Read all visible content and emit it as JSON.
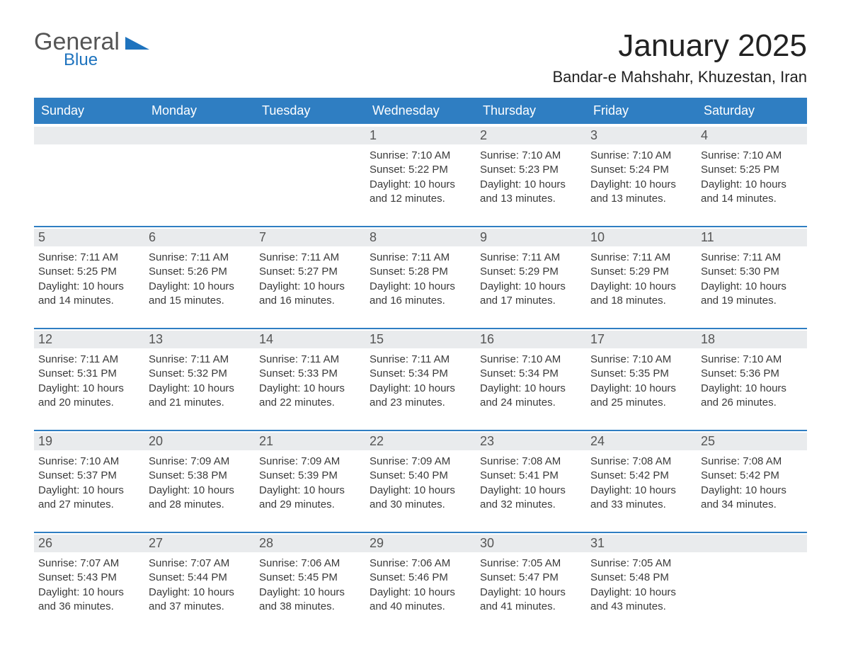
{
  "logo": {
    "word1": "General",
    "word2": "Blue"
  },
  "colors": {
    "brand_blue": "#2f7ec2",
    "link_blue": "#1e73be",
    "band_grey": "#e9ebed",
    "text": "#333333",
    "bg": "#ffffff"
  },
  "title": "January 2025",
  "location": "Bandar-e Mahshahr, Khuzestan, Iran",
  "day_names": [
    "Sunday",
    "Monday",
    "Tuesday",
    "Wednesday",
    "Thursday",
    "Friday",
    "Saturday"
  ],
  "weeks": [
    [
      {
        "day": "",
        "sunrise": "",
        "sunset": "",
        "daylight": ""
      },
      {
        "day": "",
        "sunrise": "",
        "sunset": "",
        "daylight": ""
      },
      {
        "day": "",
        "sunrise": "",
        "sunset": "",
        "daylight": ""
      },
      {
        "day": "1",
        "sunrise": "Sunrise: 7:10 AM",
        "sunset": "Sunset: 5:22 PM",
        "daylight": "Daylight: 10 hours and 12 minutes."
      },
      {
        "day": "2",
        "sunrise": "Sunrise: 7:10 AM",
        "sunset": "Sunset: 5:23 PM",
        "daylight": "Daylight: 10 hours and 13 minutes."
      },
      {
        "day": "3",
        "sunrise": "Sunrise: 7:10 AM",
        "sunset": "Sunset: 5:24 PM",
        "daylight": "Daylight: 10 hours and 13 minutes."
      },
      {
        "day": "4",
        "sunrise": "Sunrise: 7:10 AM",
        "sunset": "Sunset: 5:25 PM",
        "daylight": "Daylight: 10 hours and 14 minutes."
      }
    ],
    [
      {
        "day": "5",
        "sunrise": "Sunrise: 7:11 AM",
        "sunset": "Sunset: 5:25 PM",
        "daylight": "Daylight: 10 hours and 14 minutes."
      },
      {
        "day": "6",
        "sunrise": "Sunrise: 7:11 AM",
        "sunset": "Sunset: 5:26 PM",
        "daylight": "Daylight: 10 hours and 15 minutes."
      },
      {
        "day": "7",
        "sunrise": "Sunrise: 7:11 AM",
        "sunset": "Sunset: 5:27 PM",
        "daylight": "Daylight: 10 hours and 16 minutes."
      },
      {
        "day": "8",
        "sunrise": "Sunrise: 7:11 AM",
        "sunset": "Sunset: 5:28 PM",
        "daylight": "Daylight: 10 hours and 16 minutes."
      },
      {
        "day": "9",
        "sunrise": "Sunrise: 7:11 AM",
        "sunset": "Sunset: 5:29 PM",
        "daylight": "Daylight: 10 hours and 17 minutes."
      },
      {
        "day": "10",
        "sunrise": "Sunrise: 7:11 AM",
        "sunset": "Sunset: 5:29 PM",
        "daylight": "Daylight: 10 hours and 18 minutes."
      },
      {
        "day": "11",
        "sunrise": "Sunrise: 7:11 AM",
        "sunset": "Sunset: 5:30 PM",
        "daylight": "Daylight: 10 hours and 19 minutes."
      }
    ],
    [
      {
        "day": "12",
        "sunrise": "Sunrise: 7:11 AM",
        "sunset": "Sunset: 5:31 PM",
        "daylight": "Daylight: 10 hours and 20 minutes."
      },
      {
        "day": "13",
        "sunrise": "Sunrise: 7:11 AM",
        "sunset": "Sunset: 5:32 PM",
        "daylight": "Daylight: 10 hours and 21 minutes."
      },
      {
        "day": "14",
        "sunrise": "Sunrise: 7:11 AM",
        "sunset": "Sunset: 5:33 PM",
        "daylight": "Daylight: 10 hours and 22 minutes."
      },
      {
        "day": "15",
        "sunrise": "Sunrise: 7:11 AM",
        "sunset": "Sunset: 5:34 PM",
        "daylight": "Daylight: 10 hours and 23 minutes."
      },
      {
        "day": "16",
        "sunrise": "Sunrise: 7:10 AM",
        "sunset": "Sunset: 5:34 PM",
        "daylight": "Daylight: 10 hours and 24 minutes."
      },
      {
        "day": "17",
        "sunrise": "Sunrise: 7:10 AM",
        "sunset": "Sunset: 5:35 PM",
        "daylight": "Daylight: 10 hours and 25 minutes."
      },
      {
        "day": "18",
        "sunrise": "Sunrise: 7:10 AM",
        "sunset": "Sunset: 5:36 PM",
        "daylight": "Daylight: 10 hours and 26 minutes."
      }
    ],
    [
      {
        "day": "19",
        "sunrise": "Sunrise: 7:10 AM",
        "sunset": "Sunset: 5:37 PM",
        "daylight": "Daylight: 10 hours and 27 minutes."
      },
      {
        "day": "20",
        "sunrise": "Sunrise: 7:09 AM",
        "sunset": "Sunset: 5:38 PM",
        "daylight": "Daylight: 10 hours and 28 minutes."
      },
      {
        "day": "21",
        "sunrise": "Sunrise: 7:09 AM",
        "sunset": "Sunset: 5:39 PM",
        "daylight": "Daylight: 10 hours and 29 minutes."
      },
      {
        "day": "22",
        "sunrise": "Sunrise: 7:09 AM",
        "sunset": "Sunset: 5:40 PM",
        "daylight": "Daylight: 10 hours and 30 minutes."
      },
      {
        "day": "23",
        "sunrise": "Sunrise: 7:08 AM",
        "sunset": "Sunset: 5:41 PM",
        "daylight": "Daylight: 10 hours and 32 minutes."
      },
      {
        "day": "24",
        "sunrise": "Sunrise: 7:08 AM",
        "sunset": "Sunset: 5:42 PM",
        "daylight": "Daylight: 10 hours and 33 minutes."
      },
      {
        "day": "25",
        "sunrise": "Sunrise: 7:08 AM",
        "sunset": "Sunset: 5:42 PM",
        "daylight": "Daylight: 10 hours and 34 minutes."
      }
    ],
    [
      {
        "day": "26",
        "sunrise": "Sunrise: 7:07 AM",
        "sunset": "Sunset: 5:43 PM",
        "daylight": "Daylight: 10 hours and 36 minutes."
      },
      {
        "day": "27",
        "sunrise": "Sunrise: 7:07 AM",
        "sunset": "Sunset: 5:44 PM",
        "daylight": "Daylight: 10 hours and 37 minutes."
      },
      {
        "day": "28",
        "sunrise": "Sunrise: 7:06 AM",
        "sunset": "Sunset: 5:45 PM",
        "daylight": "Daylight: 10 hours and 38 minutes."
      },
      {
        "day": "29",
        "sunrise": "Sunrise: 7:06 AM",
        "sunset": "Sunset: 5:46 PM",
        "daylight": "Daylight: 10 hours and 40 minutes."
      },
      {
        "day": "30",
        "sunrise": "Sunrise: 7:05 AM",
        "sunset": "Sunset: 5:47 PM",
        "daylight": "Daylight: 10 hours and 41 minutes."
      },
      {
        "day": "31",
        "sunrise": "Sunrise: 7:05 AM",
        "sunset": "Sunset: 5:48 PM",
        "daylight": "Daylight: 10 hours and 43 minutes."
      },
      {
        "day": "",
        "sunrise": "",
        "sunset": "",
        "daylight": ""
      }
    ]
  ]
}
